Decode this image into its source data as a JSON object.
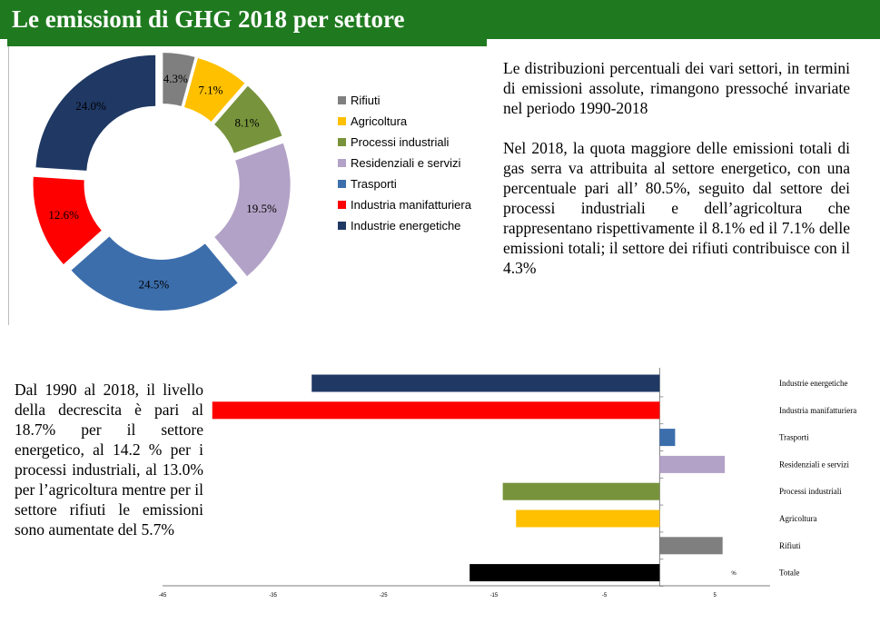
{
  "header": {
    "title": "Le emissioni di GHG 2018 per settore"
  },
  "donut_legend": [
    {
      "label": "Rifiuti",
      "color": "#7f7f7f"
    },
    {
      "label": "Agricoltura",
      "color": "#ffc000"
    },
    {
      "label": "Processi industriali",
      "color": "#77933c"
    },
    {
      "label": "Residenziali e servizi",
      "color": "#b3a2c7"
    },
    {
      "label": "Trasporti",
      "color": "#3c6eac"
    },
    {
      "label": "Industria manifatturiera",
      "color": "#ff0000"
    },
    {
      "label": "Industrie energetiche",
      "color": "#1f3864"
    }
  ],
  "right_text": {
    "paragraph_1": "Le distribuzioni percentuali dei vari settori, in termini di emissioni assolute, rimangono pressoché invariate nel periodo 1990-2018",
    "paragraph_2": "Nel 2018, la quota maggiore delle emissioni totali di gas serra va attribuita al settore energetico, con una percentuale pari all’ 80.5%, seguito dal settore dei processi industriali e dell’agricoltura che rappresentano rispettivamente il 8.1% ed il 7.1% delle emissioni totali; il settore dei rifiuti contribuisce con il 4.3%"
  },
  "left_text": {
    "paragraph": "Dal 1990 al 2018, il livello della decrescita è pari al 18.7% per il settore energetico, al 14.2 % per i processi industriali, al 13.0% per l’agricoltura mentre per il settore rifiuti le emissioni sono aumentate del 5.7%"
  },
  "chart_data": [
    {
      "type": "pie",
      "donut": true,
      "categories": [
        "Rifiuti",
        "Agricoltura",
        "Processi industriali",
        "Residenziali e servizi",
        "Trasporti",
        "Industria manifatturiera",
        "Industrie energetiche"
      ],
      "values": [
        4.3,
        7.1,
        8.1,
        19.5,
        24.5,
        12.6,
        24.0
      ],
      "labels": [
        "4.3%",
        "7.1%",
        "8.1%",
        "19.5%",
        "24.5%",
        "12.6%",
        "24.0%"
      ],
      "colors": [
        "#7f7f7f",
        "#ffc000",
        "#77933c",
        "#b3a2c7",
        "#3c6eac",
        "#ff0000",
        "#1f3864"
      ],
      "exploded": true,
      "legend_position": "right"
    },
    {
      "type": "bar",
      "orientation": "horizontal",
      "categories": [
        "Industrie energetiche",
        "Industria manifatturiera",
        "Trasporti",
        "Residenziali e servizi",
        "Processi industriali",
        "Agricoltura",
        "Rifiuti",
        "Totale"
      ],
      "values": [
        -31.5,
        -40.5,
        1.4,
        5.9,
        -14.2,
        -13.0,
        5.7,
        -17.2
      ],
      "colors": [
        "#1f3864",
        "#ff0000",
        "#3c6eac",
        "#b3a2c7",
        "#77933c",
        "#ffc000",
        "#7f7f7f",
        "#000000"
      ],
      "xlim": [
        -45,
        10
      ],
      "xticks": [
        "-45",
        "-35",
        "-25",
        "-15",
        "-5",
        "5"
      ],
      "unit_label": "%",
      "grid": false
    }
  ]
}
